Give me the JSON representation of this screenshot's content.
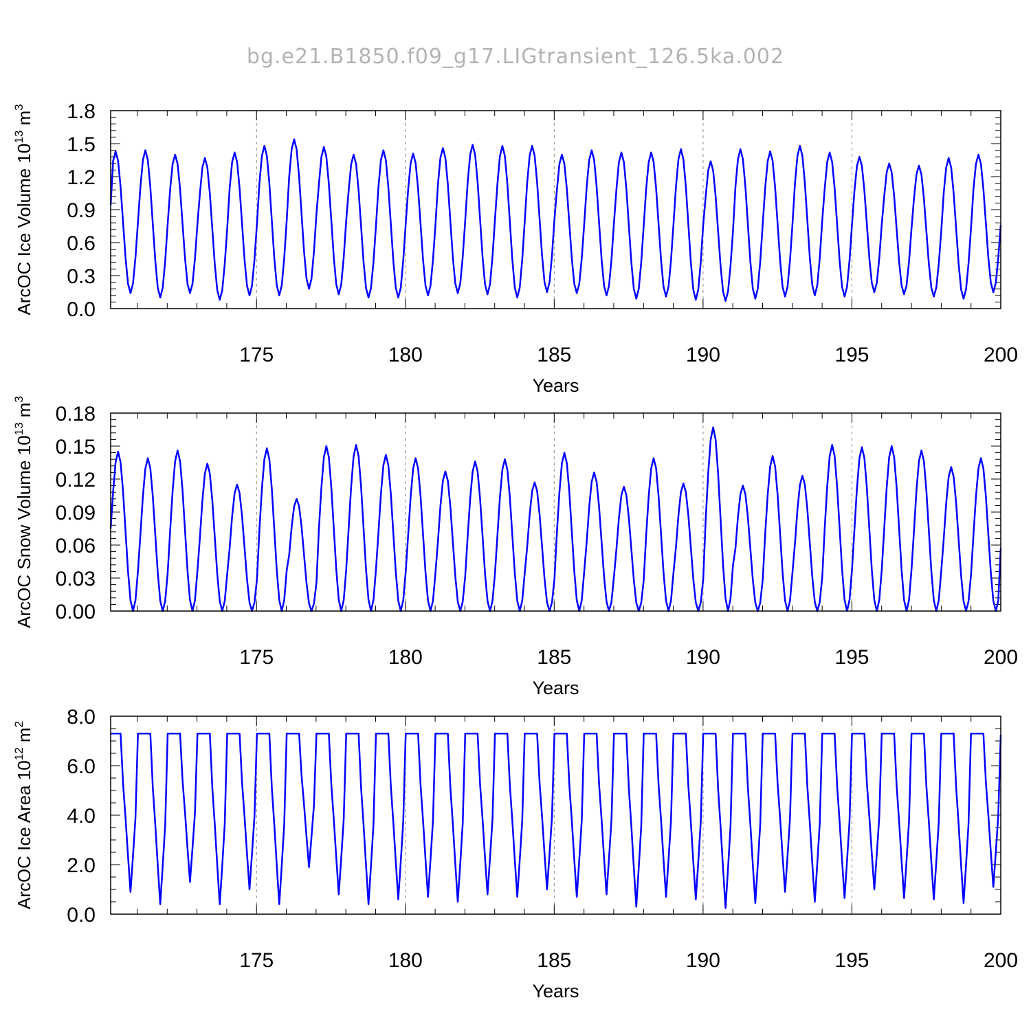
{
  "figure": {
    "title": "bg.e21.B1850.f09_g17.LIGtransient_126.5ka.002",
    "line_color": "#0000ff",
    "grid_color": "#999999"
  },
  "chart_data": [
    {
      "type": "line",
      "name": "ice-volume",
      "ylabel": {
        "base": "ArcOC Ice Volume 10",
        "exp1": "13",
        "mid": " m",
        "exp2": "3"
      },
      "xlabel": "Years",
      "xlim": [
        170.1,
        200
      ],
      "ylim": [
        0,
        1.8
      ],
      "yticks": [
        "0.0",
        "0.3",
        "0.6",
        "0.9",
        "1.2",
        "1.5",
        "1.8"
      ],
      "xticks": [
        "175",
        "180",
        "185",
        "190",
        "195",
        "200"
      ],
      "grid_x": [
        175,
        180,
        185,
        190,
        195
      ],
      "seasonal": {
        "min_month": 8,
        "high_months": [],
        "high_duty": 1
      },
      "yearly_max": [
        1.43,
        1.44,
        1.4,
        1.37,
        1.42,
        1.48,
        1.54,
        1.47,
        1.4,
        1.44,
        1.41,
        1.46,
        1.49,
        1.48,
        1.48,
        1.4,
        1.44,
        1.42,
        1.42,
        1.45,
        1.34,
        1.45,
        1.43,
        1.48,
        1.42,
        1.38,
        1.32,
        1.3,
        1.37,
        1.4
      ],
      "yearly_min": [
        0.14,
        0.1,
        0.14,
        0.08,
        0.12,
        0.12,
        0.18,
        0.13,
        0.1,
        0.1,
        0.12,
        0.14,
        0.13,
        0.1,
        0.15,
        0.14,
        0.12,
        0.09,
        0.11,
        0.08,
        0.07,
        0.09,
        0.11,
        0.12,
        0.11,
        0.15,
        0.13,
        0.11,
        0.09,
        0.15
      ],
      "start_value": 0.94,
      "end_value": 0.76
    },
    {
      "type": "line",
      "name": "snow-volume",
      "ylabel": {
        "base": "ArcOC Snow Volume 10",
        "exp1": "13",
        "mid": " m",
        "exp2": "3"
      },
      "xlabel": "Years",
      "xlim": [
        170.1,
        200
      ],
      "ylim": [
        0,
        0.18
      ],
      "yticks": [
        "0.00",
        "0.03",
        "0.06",
        "0.09",
        "0.12",
        "0.15",
        "0.18"
      ],
      "xticks": [
        "175",
        "180",
        "185",
        "190",
        "195",
        "200"
      ],
      "grid_x": [
        175,
        180,
        185,
        190,
        195
      ],
      "seasonal": {
        "min_month": 9,
        "high_months": [],
        "high_duty": 1
      },
      "yearly_max": [
        0.145,
        0.139,
        0.146,
        0.134,
        0.115,
        0.148,
        0.102,
        0.15,
        0.151,
        0.142,
        0.139,
        0.127,
        0.136,
        0.138,
        0.117,
        0.144,
        0.126,
        0.113,
        0.139,
        0.116,
        0.167,
        0.114,
        0.141,
        0.123,
        0.151,
        0.149,
        0.15,
        0.146,
        0.131,
        0.139
      ],
      "yearly_min": [
        0.0,
        0.0,
        0.0,
        0.0,
        0.0,
        0.0,
        0.0,
        0.0,
        0.0,
        0.0,
        0.0,
        0.0,
        0.0,
        0.0,
        0.0,
        0.0,
        0.0,
        0.0,
        0.0,
        0.0,
        0.0,
        0.0,
        0.0,
        0.0,
        0.0,
        0.0,
        0.0,
        0.0,
        0.0,
        0.0
      ],
      "start_value": 0.075,
      "end_value": 0.057
    },
    {
      "type": "line",
      "name": "ice-area",
      "ylabel": {
        "base": "ArcOC Ice Area 10",
        "exp1": "12",
        "mid": " m",
        "exp2": "2"
      },
      "xlabel": "Years",
      "xlim": [
        170.1,
        200
      ],
      "ylim": [
        0,
        8
      ],
      "yticks": [
        "0.0",
        "2.0",
        "4.0",
        "6.0",
        "8.0"
      ],
      "xticks": [
        "175",
        "180",
        "185",
        "190",
        "195",
        "200"
      ],
      "grid_x": [
        175,
        180,
        185,
        190,
        195
      ],
      "seasonal": {
        "min_month": 8,
        "high_months": [
          11,
          0,
          1,
          2,
          3,
          4
        ],
        "high_duty": 0.55
      },
      "yearly_max": [
        7.3,
        7.3,
        7.3,
        7.3,
        7.3,
        7.3,
        7.3,
        7.3,
        7.3,
        7.3,
        7.3,
        7.3,
        7.3,
        7.3,
        7.3,
        7.3,
        7.3,
        7.3,
        7.3,
        7.3,
        7.3,
        7.3,
        7.3,
        7.3,
        7.3,
        7.3,
        7.3,
        7.3,
        7.3,
        7.3
      ],
      "yearly_min": [
        0.9,
        0.4,
        1.3,
        0.4,
        1.0,
        0.4,
        1.9,
        0.8,
        0.4,
        0.6,
        0.7,
        0.5,
        0.8,
        0.7,
        1.0,
        0.7,
        0.8,
        0.3,
        0.7,
        0.6,
        0.25,
        0.45,
        0.9,
        0.5,
        0.65,
        1.0,
        0.65,
        0.6,
        0.45,
        1.1
      ],
      "start_value": 7.3,
      "end_value": 7.25
    }
  ]
}
